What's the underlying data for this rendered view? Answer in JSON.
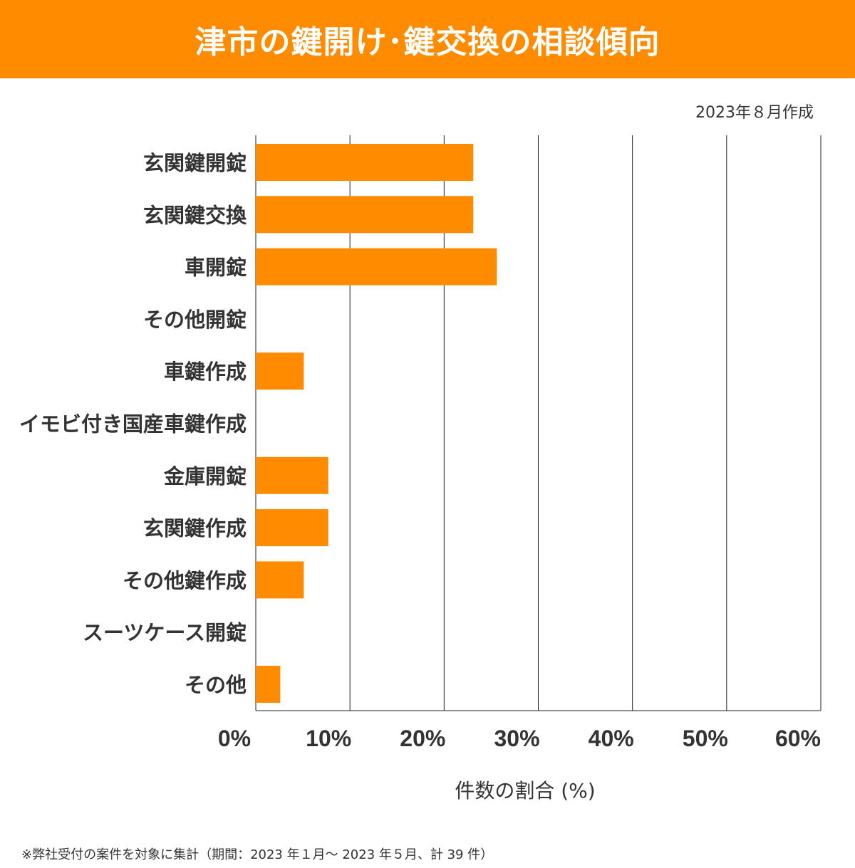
{
  "colors": {
    "accent": "#FF8C00",
    "text": "#333333",
    "grid": "#222222"
  },
  "header": {
    "title": "津市の鍵開け･鍵交換の相談傾向"
  },
  "meta": {
    "created": "2023年８月作成"
  },
  "chart_data": {
    "type": "bar",
    "orientation": "horizontal",
    "categories": [
      "玄関鍵開錠",
      "玄関鍵交換",
      "車開錠",
      "その他開錠",
      "車鍵作成",
      "イモビ付き国産車鍵作成",
      "金庫開錠",
      "玄関鍵作成",
      "その他鍵作成",
      "スーツケース開錠",
      "その他"
    ],
    "values": [
      23.1,
      23.1,
      25.6,
      0,
      5.1,
      0,
      7.7,
      7.7,
      5.1,
      0,
      2.6
    ],
    "xlim": [
      0,
      60
    ],
    "xticks": [
      "0%",
      "10%",
      "20%",
      "30%",
      "40%",
      "50%",
      "60%"
    ],
    "xlabel": "件数の割合 (%)",
    "grid": true
  },
  "footnote": "※弊社受付の案件を対象に集計（期間：2023 年１月～ 2023 年５月、計 39 件）"
}
